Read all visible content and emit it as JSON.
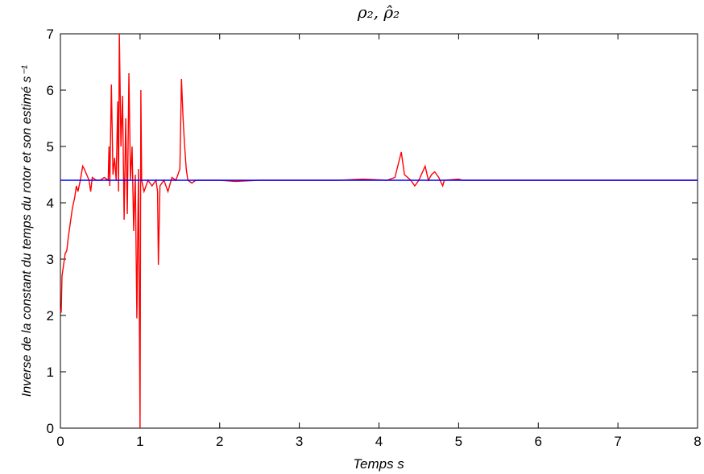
{
  "chart_data": {
    "type": "line",
    "title": "ρ₂,  ρ̂₂",
    "xlabel": "Temps s",
    "ylabel": "Inverse de la constant du temps du rotor et son estimé s⁻¹",
    "xlim": [
      0,
      8
    ],
    "ylim": [
      0,
      7
    ],
    "xticks": [
      0,
      1,
      2,
      3,
      4,
      5,
      6,
      7,
      8
    ],
    "yticks": [
      0,
      1,
      2,
      3,
      4,
      5,
      6,
      7
    ],
    "grid": false,
    "series": [
      {
        "color": "#0000ff",
        "x": [
          0,
          8
        ],
        "values": [
          4.4,
          4.4
        ]
      },
      {
        "color": "#ff0000",
        "x": [
          0,
          0.01,
          0.02,
          0.04,
          0.06,
          0.08,
          0.1,
          0.12,
          0.15,
          0.18,
          0.2,
          0.22,
          0.25,
          0.28,
          0.3,
          0.33,
          0.36,
          0.38,
          0.4,
          0.45,
          0.5,
          0.55,
          0.6,
          0.61,
          0.62,
          0.64,
          0.66,
          0.68,
          0.7,
          0.72,
          0.73,
          0.74,
          0.76,
          0.78,
          0.8,
          0.82,
          0.84,
          0.86,
          0.88,
          0.9,
          0.92,
          0.94,
          0.96,
          0.98,
          1.0,
          1.01,
          1.02,
          1.05,
          1.1,
          1.15,
          1.2,
          1.22,
          1.23,
          1.25,
          1.3,
          1.35,
          1.4,
          1.45,
          1.5,
          1.52,
          1.54,
          1.56,
          1.58,
          1.6,
          1.65,
          1.7,
          2,
          2.2,
          2.5,
          3.5,
          3.8,
          4.1,
          4.2,
          4.28,
          4.32,
          4.4,
          4.45,
          4.5,
          4.58,
          4.62,
          4.66,
          4.7,
          4.75,
          4.8,
          4.82,
          5.0,
          5.05,
          8
        ],
        "values": [
          2.1,
          2.05,
          2.7,
          2.9,
          3.1,
          3.15,
          3.4,
          3.6,
          3.9,
          4.1,
          4.3,
          4.2,
          4.4,
          4.65,
          4.6,
          4.5,
          4.4,
          4.2,
          4.45,
          4.4,
          4.4,
          4.45,
          4.4,
          5.0,
          4.3,
          6.1,
          4.5,
          4.8,
          4.4,
          5.8,
          4.2,
          7.0,
          5.0,
          5.9,
          3.7,
          5.5,
          3.8,
          6.3,
          4.4,
          5.0,
          3.5,
          4.5,
          1.95,
          4.6,
          0,
          6.0,
          4.4,
          4.2,
          4.4,
          4.3,
          4.4,
          4.2,
          2.9,
          4.3,
          4.4,
          4.2,
          4.45,
          4.4,
          4.6,
          6.2,
          5.5,
          5.0,
          4.6,
          4.4,
          4.35,
          4.4,
          4.4,
          4.38,
          4.4,
          4.4,
          4.42,
          4.4,
          4.45,
          4.9,
          4.5,
          4.4,
          4.3,
          4.4,
          4.65,
          4.4,
          4.5,
          4.55,
          4.45,
          4.3,
          4.4,
          4.42,
          4.4,
          4.4
        ]
      }
    ]
  }
}
